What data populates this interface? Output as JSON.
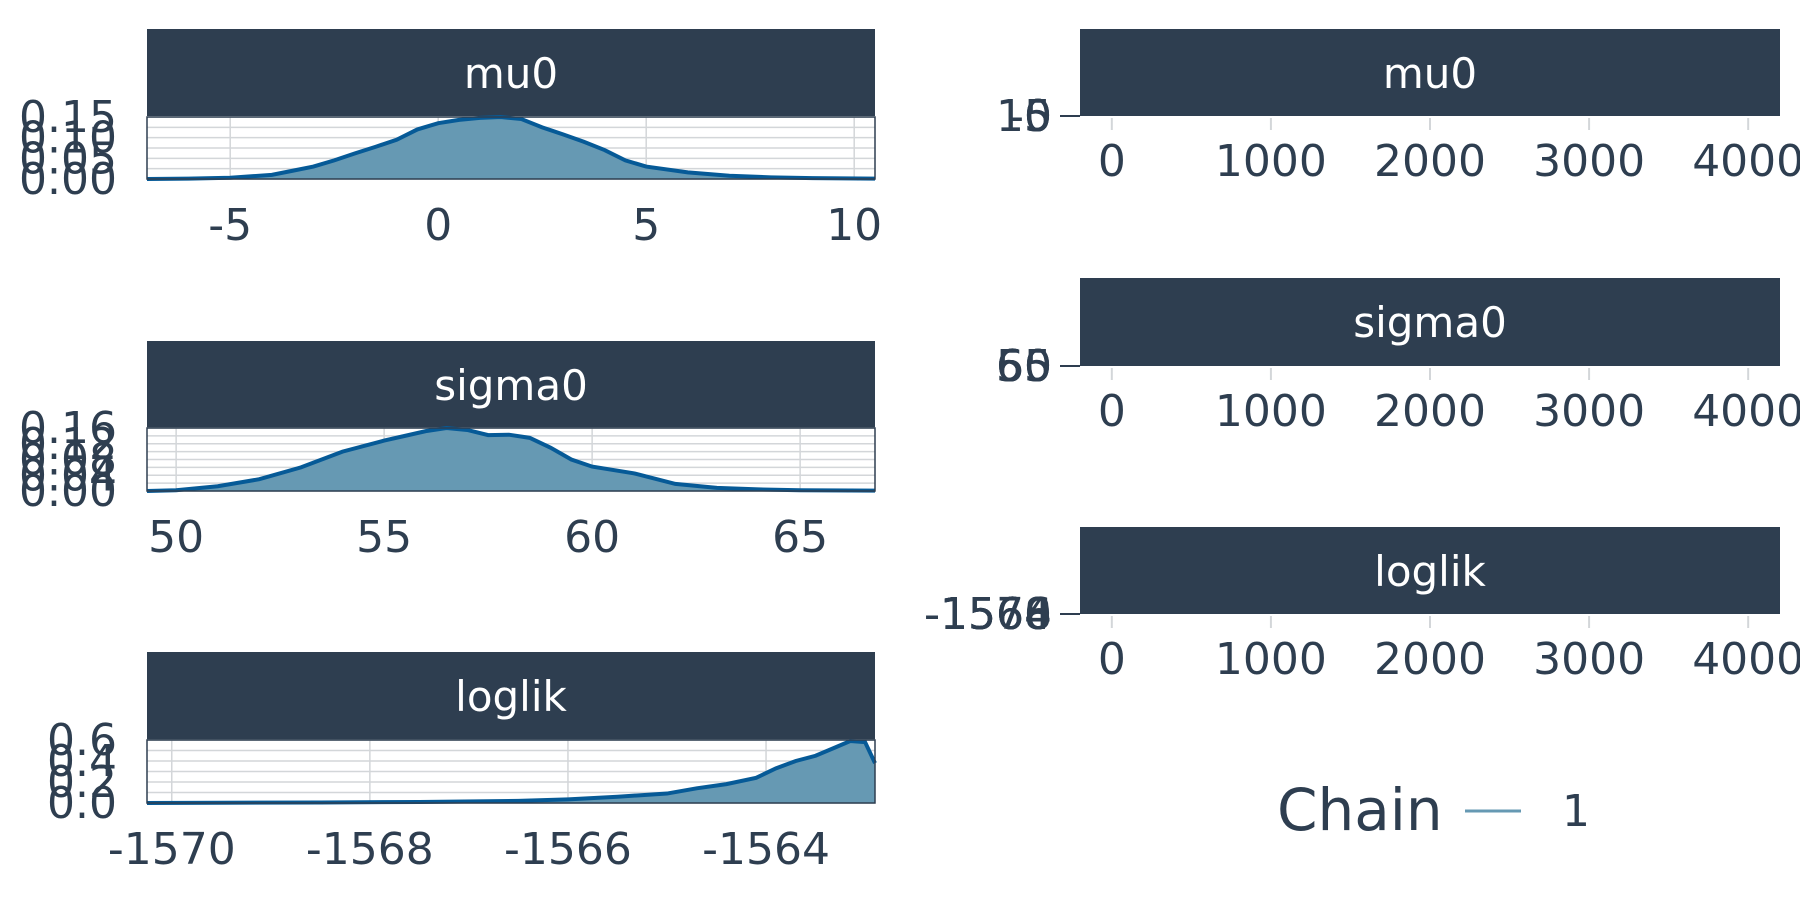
{
  "colors": {
    "strip": "#2e3e50",
    "text": "#2e3e50",
    "grid": "#d3d6d9",
    "density_fill": "#6699b3",
    "density_line": "#065a97",
    "trace_line": "#6699b3"
  },
  "legend": {
    "title": "Chain",
    "items": [
      "1"
    ]
  },
  "chart_data": [
    {
      "type": "area",
      "title": "mu0",
      "xlim": [
        -7,
        10.5
      ],
      "ylim": [
        0,
        0.15
      ],
      "x_ticks": [
        "-5",
        "0",
        "5",
        "10"
      ],
      "x_tick_values": [
        -5,
        0,
        5,
        10
      ],
      "y_ticks": [
        "0.00",
        "0.05",
        "0.10",
        "0.15"
      ],
      "y_tick_values": [
        0,
        0.05,
        0.1,
        0.15
      ],
      "x": [
        -7,
        -6,
        -5,
        -4,
        -3.5,
        -3,
        -2.5,
        -2,
        -1.5,
        -1,
        -0.5,
        0,
        0.5,
        1,
        1.5,
        2,
        2.5,
        3,
        3.5,
        4,
        4.5,
        5,
        6,
        7,
        8,
        9,
        10.5
      ],
      "y": [
        0,
        0.001,
        0.003,
        0.01,
        0.02,
        0.03,
        0.045,
        0.062,
        0.078,
        0.095,
        0.12,
        0.135,
        0.143,
        0.148,
        0.15,
        0.145,
        0.125,
        0.108,
        0.09,
        0.07,
        0.045,
        0.03,
        0.016,
        0.008,
        0.004,
        0.002,
        0.001
      ]
    },
    {
      "type": "area",
      "title": "sigma0",
      "xlim": [
        49.3,
        66.8
      ],
      "ylim": [
        0,
        0.16
      ],
      "x_ticks": [
        "50",
        "55",
        "60",
        "65"
      ],
      "x_tick_values": [
        50,
        55,
        60,
        65
      ],
      "y_ticks": [
        "0.00",
        "0.04",
        "0.08",
        "0.12",
        "0.16"
      ],
      "y_tick_values": [
        0,
        0.04,
        0.08,
        0.12,
        0.16
      ],
      "x": [
        49.3,
        50,
        51,
        52,
        53,
        54,
        55,
        55.5,
        56,
        56.5,
        57,
        57.5,
        58,
        58.5,
        59,
        59.5,
        60,
        61,
        62,
        63,
        64,
        65,
        66.8
      ],
      "y": [
        0,
        0.002,
        0.012,
        0.03,
        0.06,
        0.1,
        0.128,
        0.14,
        0.152,
        0.16,
        0.155,
        0.142,
        0.143,
        0.135,
        0.11,
        0.08,
        0.062,
        0.045,
        0.018,
        0.008,
        0.004,
        0.002,
        0.001
      ]
    },
    {
      "type": "area",
      "title": "loglik",
      "xlim": [
        -1570.25,
        -1562.9
      ],
      "ylim": [
        0,
        0.6
      ],
      "x_ticks": [
        "-1570",
        "-1568",
        "-1566",
        "-1564"
      ],
      "x_tick_values": [
        -1570,
        -1568,
        -1566,
        -1564
      ],
      "y_ticks": [
        "0.0",
        "0.2",
        "0.4",
        "0.6"
      ],
      "y_tick_values": [
        0,
        0.2,
        0.4,
        0.6
      ],
      "x": [
        -1570.25,
        -1569.5,
        -1568.5,
        -1567.5,
        -1566.5,
        -1566,
        -1565.5,
        -1565,
        -1564.7,
        -1564.4,
        -1564.1,
        -1563.9,
        -1563.7,
        -1563.5,
        -1563.3,
        -1563.15,
        -1563,
        -1562.9
      ],
      "y": [
        0,
        0.002,
        0.005,
        0.01,
        0.02,
        0.035,
        0.06,
        0.09,
        0.14,
        0.18,
        0.24,
        0.33,
        0.4,
        0.45,
        0.53,
        0.59,
        0.58,
        0.38
      ]
    },
    {
      "type": "line",
      "title": "mu0",
      "xlim": [
        -200,
        4200
      ],
      "x_ticks": [
        "0",
        "1000",
        "2000",
        "3000",
        "4000"
      ],
      "x_tick_values": [
        0,
        1000,
        2000,
        3000,
        4000
      ],
      "y_ticks": [
        "-5",
        "0",
        "5",
        "10"
      ]
    },
    {
      "type": "line",
      "title": "sigma0",
      "xlim": [
        -200,
        4200
      ],
      "x_ticks": [
        "0",
        "1000",
        "2000",
        "3000",
        "4000"
      ],
      "x_tick_values": [
        0,
        1000,
        2000,
        3000,
        4000
      ],
      "y_ticks": [
        "50",
        "55",
        "60",
        "65"
      ]
    },
    {
      "type": "line",
      "title": "loglik",
      "xlim": [
        -200,
        4200
      ],
      "x_ticks": [
        "0",
        "1000",
        "2000",
        "3000",
        "4000"
      ],
      "x_tick_values": [
        0,
        1000,
        2000,
        3000,
        4000
      ],
      "y_ticks": [
        "-1570",
        "-1568",
        "-1566",
        "-1564"
      ]
    }
  ]
}
